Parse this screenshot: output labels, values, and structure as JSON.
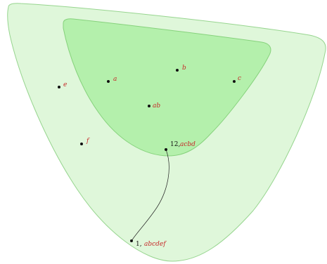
{
  "colors": {
    "outer_fill": "#dff7da",
    "outer_stroke": "#97d58f",
    "inner_fill": "#b4f0ac",
    "inner_stroke": "#86d27c",
    "label_red": "#c62828",
    "point": "#111111"
  },
  "regions": [
    {
      "name": "outer-region"
    },
    {
      "name": "inner-region"
    }
  ],
  "points": [
    {
      "id": "e",
      "label": "e"
    },
    {
      "id": "a",
      "label": "a"
    },
    {
      "id": "b",
      "label": "b"
    },
    {
      "id": "c",
      "label": "c"
    },
    {
      "id": "ab",
      "label": "ab"
    },
    {
      "id": "f",
      "label": "f"
    },
    {
      "id": "acbd",
      "count": "12,",
      "label": "acbd"
    },
    {
      "id": "abcdef",
      "count": "1,",
      "label": "abcdef"
    }
  ]
}
